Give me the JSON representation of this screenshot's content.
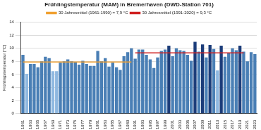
{
  "chart_data": {
    "type": "bar",
    "title": "Frühlingstemperatur (MAM) in Bremerhaven (DWD-Station 701)",
    "y_label": "Frühlingstemperatur [°C]",
    "categories": [
      "1961",
      null,
      "1963",
      null,
      "1965",
      null,
      "1967",
      null,
      "1969",
      null,
      "1971",
      null,
      "1973",
      null,
      "1975",
      null,
      "1977",
      null,
      "1979",
      null,
      "1981",
      null,
      "1983",
      null,
      "1985",
      null,
      "1987",
      null,
      "1989",
      null,
      "1991",
      null,
      "1993",
      null,
      "1995",
      null,
      "1997",
      null,
      "1999",
      null,
      "2001",
      null,
      "2003",
      null,
      "2005",
      null,
      "2007",
      null,
      "2009",
      null,
      "2011",
      null,
      "2013",
      null,
      "2015",
      null,
      "2017",
      null,
      "2019",
      null,
      "2021",
      null,
      "2023"
    ],
    "series": [
      {
        "type": "bar",
        "values": [
          9.0,
          6.1,
          7.6,
          7.6,
          7.1,
          8.0,
          8.7,
          8.5,
          6.5,
          6.5,
          7.8,
          8.0,
          8.3,
          8.0,
          7.9,
          7.5,
          8.1,
          7.6,
          7.3,
          7.3,
          9.6,
          8.0,
          8.5,
          7.2,
          7.8,
          7.1,
          6.7,
          8.8,
          9.4,
          10.0,
          8.4,
          9.8,
          9.8,
          9.0,
          8.3,
          7.0,
          8.6,
          9.6,
          9.8,
          10.4,
          8.8,
          10.0,
          9.7,
          9.6,
          9.0,
          8.1,
          11.0,
          9.5,
          10.6,
          8.6,
          10.5,
          9.9,
          6.6,
          10.4,
          8.7,
          9.3,
          10.0,
          9.7,
          10.4,
          9.5,
          8.0,
          9.4,
          9.1
        ],
        "colors": [
          "#4a7fb5",
          "#8fb8e0",
          "#4a7fb5",
          "#4a7fb5",
          "#4a7fb5",
          "#4a7fb5",
          "#4a7fb5",
          "#4a7fb5",
          "#8fb8e0",
          "#8fb8e0",
          "#4a7fb5",
          "#4a7fb5",
          "#4a7fb5",
          "#4a7fb5",
          "#4a7fb5",
          "#4a7fb5",
          "#4a7fb5",
          "#4a7fb5",
          "#4a7fb5",
          "#4a7fb5",
          "#4a7fb5",
          "#4a7fb5",
          "#4a7fb5",
          "#4a7fb5",
          "#4a7fb5",
          "#4a7fb5",
          "#4a7fb5",
          "#4a7fb5",
          "#4a7fb5",
          "#4a7fb5",
          "#4a7fb5",
          "#4a7fb5",
          "#4a7fb5",
          "#4a7fb5",
          "#4a7fb5",
          "#4a7fb5",
          "#4a7fb5",
          "#4a7fb5",
          "#4a7fb5",
          "#1c3d7a",
          "#4a7fb5",
          "#4a7fb5",
          "#4a7fb5",
          "#4a7fb5",
          "#4a7fb5",
          "#4a7fb5",
          "#1c3d7a",
          "#4a7fb5",
          "#1c3d7a",
          "#4a7fb5",
          "#1c3d7a",
          "#4a7fb5",
          "#8fb8e0",
          "#1c3d7a",
          "#4a7fb5",
          "#4a7fb5",
          "#4a7fb5",
          "#4a7fb5",
          "#1c3d7a",
          "#4a7fb5",
          "#4a7fb5",
          "#4a7fb5",
          "#4a7fb5"
        ]
      },
      {
        "type": "line",
        "name": "30 Jahresmittel (1961-1990) = 7,9 °C",
        "color": "#f0a030",
        "values": [
          7.9,
          7.9,
          7.9,
          7.9,
          7.9,
          7.9,
          7.9,
          7.9,
          7.9,
          7.9,
          7.9,
          7.9,
          7.9,
          7.9,
          7.9,
          7.9,
          7.9,
          7.9,
          7.9,
          7.9,
          7.9,
          7.9,
          7.9,
          7.9,
          7.9,
          7.9,
          7.9,
          7.9,
          7.9,
          7.9,
          null,
          null,
          null,
          null,
          null,
          null,
          null,
          null,
          null,
          null,
          null,
          null,
          null,
          null,
          null,
          null,
          null,
          null,
          null,
          null,
          null,
          null,
          null,
          null,
          null,
          null,
          null,
          null,
          null,
          null,
          null,
          null,
          null
        ]
      },
      {
        "type": "line",
        "name": "30 Jahresmittel (1991-2020) = 9,3 °C",
        "color": "#d02020",
        "values": [
          null,
          null,
          null,
          null,
          null,
          null,
          null,
          null,
          null,
          null,
          null,
          null,
          null,
          null,
          null,
          null,
          null,
          null,
          null,
          null,
          null,
          null,
          null,
          null,
          null,
          null,
          null,
          null,
          null,
          null,
          9.3,
          9.3,
          9.3,
          9.3,
          9.3,
          9.3,
          9.3,
          9.3,
          9.3,
          9.3,
          9.3,
          9.3,
          9.3,
          9.3,
          9.3,
          9.3,
          9.3,
          9.3,
          9.3,
          9.3,
          9.3,
          9.3,
          9.3,
          9.3,
          9.3,
          9.3,
          9.3,
          9.3,
          9.3,
          9.3,
          null,
          null,
          null
        ]
      }
    ],
    "ylim": [
      0,
      14
    ],
    "yticks": [
      0,
      2,
      4,
      6,
      8,
      10,
      12,
      14
    ],
    "grid": true,
    "legend": "top"
  }
}
